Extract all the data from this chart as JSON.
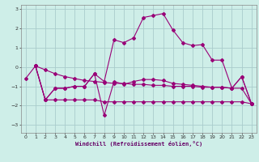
{
  "title": "",
  "xlabel": "Windchill (Refroidissement éolien,°C)",
  "background_color": "#ceeee8",
  "grid_color": "#aacccc",
  "line_color": "#990077",
  "xlim": [
    -0.5,
    23.5
  ],
  "ylim": [
    -3.4,
    3.2
  ],
  "yticks": [
    -3,
    -2,
    -1,
    0,
    1,
    2,
    3
  ],
  "xticks": [
    0,
    1,
    2,
    3,
    4,
    5,
    6,
    7,
    8,
    9,
    10,
    11,
    12,
    13,
    14,
    15,
    16,
    17,
    18,
    19,
    20,
    21,
    22,
    23
  ],
  "series": [
    {
      "x": [
        0,
        1,
        2,
        3,
        4,
        5,
        6,
        7,
        8,
        9,
        10,
        11,
        12,
        13,
        14,
        15,
        16,
        17,
        18,
        19,
        20,
        21,
        22,
        23
      ],
      "y": [
        -0.6,
        0.05,
        -0.15,
        -0.35,
        -0.5,
        -0.6,
        -0.7,
        -0.75,
        -0.8,
        -0.85,
        -0.85,
        -0.9,
        -0.9,
        -0.95,
        -0.95,
        -1.0,
        -1.0,
        -1.0,
        -1.05,
        -1.05,
        -1.05,
        -1.1,
        -1.1,
        -1.9
      ]
    },
    {
      "x": [
        1,
        2,
        3,
        4,
        5,
        6,
        7,
        8,
        9,
        10,
        11,
        12,
        13,
        14,
        15,
        16,
        17,
        18,
        19,
        20,
        21,
        22,
        23
      ],
      "y": [
        0.05,
        -1.7,
        -1.7,
        -1.7,
        -1.7,
        -1.7,
        -1.7,
        -1.8,
        -1.8,
        -1.8,
        -1.8,
        -1.8,
        -1.8,
        -1.8,
        -1.8,
        -1.8,
        -1.8,
        -1.8,
        -1.8,
        -1.8,
        -1.8,
        -1.8,
        -1.9
      ]
    },
    {
      "x": [
        1,
        2,
        3,
        4,
        5,
        6,
        7,
        8,
        9,
        10,
        11,
        12,
        13,
        14,
        15,
        16,
        17,
        18,
        19,
        20,
        21,
        22,
        23
      ],
      "y": [
        0.05,
        -1.7,
        -1.1,
        -1.1,
        -1.0,
        -1.0,
        -0.35,
        -2.5,
        -0.75,
        -0.9,
        -0.75,
        -0.65,
        -0.65,
        -0.7,
        -0.85,
        -0.9,
        -0.95,
        -1.0,
        -1.05,
        -1.05,
        -1.1,
        -0.5,
        -1.9
      ]
    },
    {
      "x": [
        1,
        2,
        3,
        4,
        5,
        6,
        7,
        8,
        9,
        10,
        11,
        12,
        13,
        14,
        15,
        16,
        17,
        18,
        19,
        20,
        21,
        22,
        23
      ],
      "y": [
        0.05,
        -1.7,
        -1.1,
        -1.1,
        -1.0,
        -1.0,
        -0.35,
        -0.75,
        1.4,
        1.25,
        1.5,
        2.55,
        2.65,
        2.75,
        1.9,
        1.25,
        1.1,
        1.15,
        0.35,
        0.35,
        -1.1,
        -0.5,
        -1.9
      ]
    }
  ]
}
